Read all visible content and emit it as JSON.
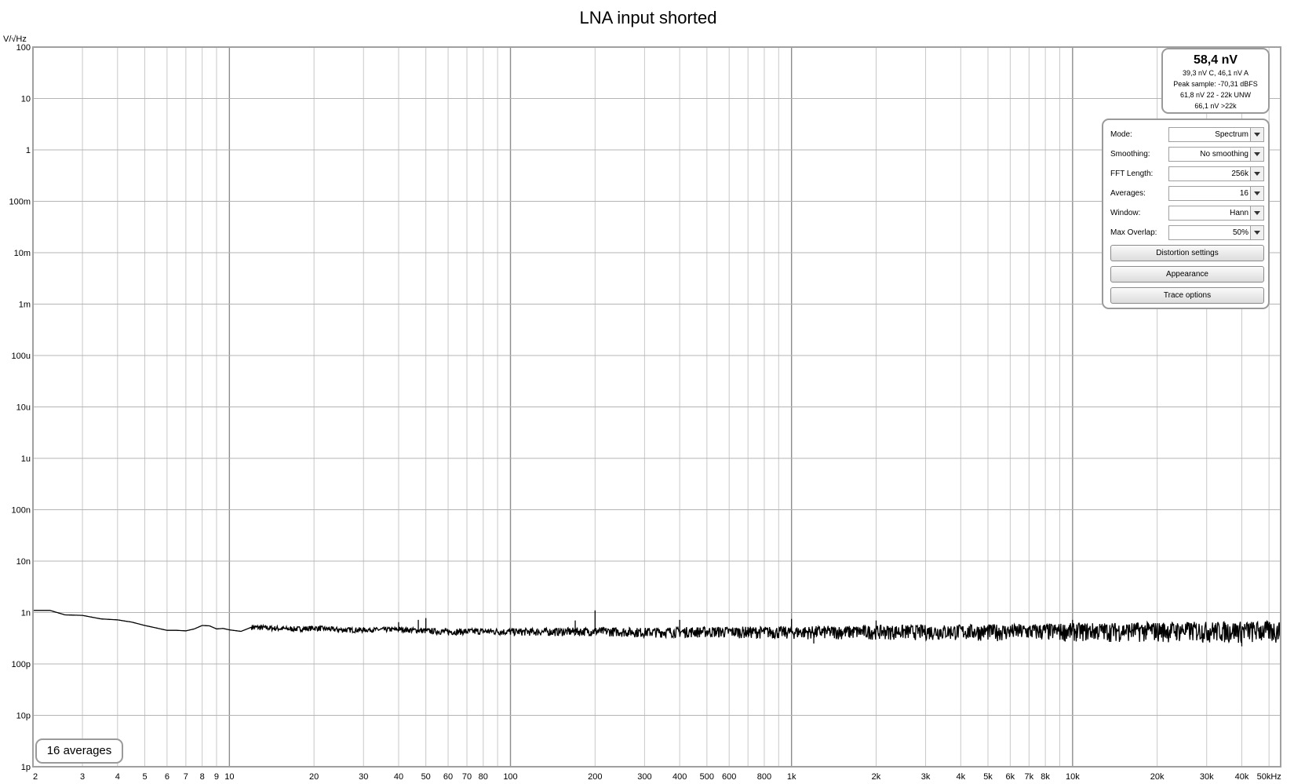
{
  "chart_data": {
    "type": "line",
    "title": "LNA input shorted",
    "ylabel": "V/√Hz",
    "x_unit": "kHz",
    "x_scale": "log",
    "y_scale": "log",
    "xlim": [
      2,
      55000
    ],
    "ylim": [
      1e-12,
      100
    ],
    "x_ticks": [
      {
        "v": 2,
        "label": "2"
      },
      {
        "v": 3,
        "label": "3"
      },
      {
        "v": 4,
        "label": "4"
      },
      {
        "v": 5,
        "label": "5"
      },
      {
        "v": 6,
        "label": "6"
      },
      {
        "v": 7,
        "label": "7"
      },
      {
        "v": 8,
        "label": "8"
      },
      {
        "v": 9,
        "label": "9"
      },
      {
        "v": 10,
        "label": "10"
      },
      {
        "v": 20,
        "label": "20"
      },
      {
        "v": 30,
        "label": "30"
      },
      {
        "v": 40,
        "label": "40"
      },
      {
        "v": 50,
        "label": "50"
      },
      {
        "v": 60,
        "label": "60"
      },
      {
        "v": 70,
        "label": "70"
      },
      {
        "v": 80,
        "label": "80"
      },
      {
        "v": 100,
        "label": "100"
      },
      {
        "v": 200,
        "label": "200"
      },
      {
        "v": 300,
        "label": "300"
      },
      {
        "v": 400,
        "label": "400"
      },
      {
        "v": 500,
        "label": "500"
      },
      {
        "v": 600,
        "label": "600"
      },
      {
        "v": 800,
        "label": "800"
      },
      {
        "v": 1000,
        "label": "1k"
      },
      {
        "v": 2000,
        "label": "2k"
      },
      {
        "v": 3000,
        "label": "3k"
      },
      {
        "v": 4000,
        "label": "4k"
      },
      {
        "v": 5000,
        "label": "5k"
      },
      {
        "v": 6000,
        "label": "6k"
      },
      {
        "v": 7000,
        "label": "7k"
      },
      {
        "v": 8000,
        "label": "8k"
      },
      {
        "v": 10000,
        "label": "10k"
      },
      {
        "v": 20000,
        "label": "20k"
      },
      {
        "v": 30000,
        "label": "30k"
      },
      {
        "v": 40000,
        "label": "40k"
      },
      {
        "v": 50000,
        "label": "50kHz"
      }
    ],
    "y_ticks": [
      {
        "v": 100,
        "label": "100"
      },
      {
        "v": 10,
        "label": "10"
      },
      {
        "v": 1,
        "label": "1"
      },
      {
        "v": 0.1,
        "label": "100m"
      },
      {
        "v": 0.01,
        "label": "10m"
      },
      {
        "v": 0.001,
        "label": "1m"
      },
      {
        "v": 0.0001,
        "label": "100u"
      },
      {
        "v": 1e-05,
        "label": "10u"
      },
      {
        "v": 1e-06,
        "label": "1u"
      },
      {
        "v": 1e-07,
        "label": "100n"
      },
      {
        "v": 1e-08,
        "label": "10n"
      },
      {
        "v": 1e-09,
        "label": "1n"
      },
      {
        "v": 1e-10,
        "label": "100p"
      },
      {
        "v": 1e-11,
        "label": "10p"
      },
      {
        "v": 1e-12,
        "label": "1p"
      }
    ],
    "grid": true,
    "series": [
      {
        "color": "#000000",
        "x": [
          2,
          2.3,
          2.6,
          3,
          3.5,
          4,
          4.5,
          5,
          5.5,
          6,
          6.5,
          7,
          7.5,
          8,
          8.5,
          9,
          9.5,
          10,
          11,
          12,
          14,
          16,
          18,
          20,
          25,
          30,
          40,
          50,
          60,
          80,
          100,
          150,
          200,
          300,
          500,
          1000,
          2000,
          5000,
          10000,
          20000,
          50000
        ],
        "y": [
          1.1e-09,
          1.1e-09,
          9e-10,
          8.8e-10,
          7.5e-10,
          7.2e-10,
          6.5e-10,
          5.6e-10,
          5e-10,
          4.5e-10,
          4.5e-10,
          4.4e-10,
          4.8e-10,
          5.6e-10,
          5.5e-10,
          4.8e-10,
          4.9e-10,
          4.6e-10,
          4.3e-10,
          5.2e-10,
          5e-10,
          4.8e-10,
          4.8e-10,
          5e-10,
          4.6e-10,
          4.6e-10,
          4.7e-10,
          4.4e-10,
          4.2e-10,
          4.3e-10,
          4.2e-10,
          4.2e-10,
          4.3e-10,
          4.1e-10,
          4.2e-10,
          4.1e-10,
          4.2e-10,
          4.2e-10,
          4.3e-10,
          4.4e-10,
          4.4e-10
        ],
        "spikes": [
          {
            "x": 40,
            "y": 6.5e-10
          },
          {
            "x": 47,
            "y": 7.2e-10
          },
          {
            "x": 50,
            "y": 7.8e-10
          },
          {
            "x": 170,
            "y": 7e-10
          },
          {
            "x": 200,
            "y": 1.1e-09
          },
          {
            "x": 400,
            "y": 7.2e-10
          },
          {
            "x": 1000,
            "y": 7.5e-10
          },
          {
            "x": 1200,
            "y": 2.5e-10
          },
          {
            "x": 2000,
            "y": 7e-10
          },
          {
            "x": 10000,
            "y": 7.2e-10
          },
          {
            "x": 40000,
            "y": 2.2e-10
          }
        ],
        "noise_band": {
          "from": 30,
          "to": 55000,
          "low_factor": [
            0.9,
            0.55
          ],
          "high_factor": [
            1.1,
            1.55
          ]
        }
      }
    ]
  },
  "readout": {
    "main": "58,4 nV",
    "lines": [
      "39,3 nV C, 46,1 nV A",
      "Peak sample: -70,31 dBFS",
      "61,8 nV 22 - 22k UNW",
      "66,1 nV >22k"
    ]
  },
  "controls": {
    "rows": [
      {
        "label": "Mode:",
        "value": "Spectrum"
      },
      {
        "label": "Smoothing:",
        "value": "No  smoothing"
      },
      {
        "label": "FFT Length:",
        "value": "256k"
      },
      {
        "label": "Averages:",
        "value": "16"
      },
      {
        "label": "Window:",
        "value": "Hann"
      },
      {
        "label": "Max Overlap:",
        "value": "50%"
      }
    ],
    "buttons": [
      "Distortion settings",
      "Appearance",
      "Trace options"
    ]
  },
  "averages_badge": "16 averages"
}
